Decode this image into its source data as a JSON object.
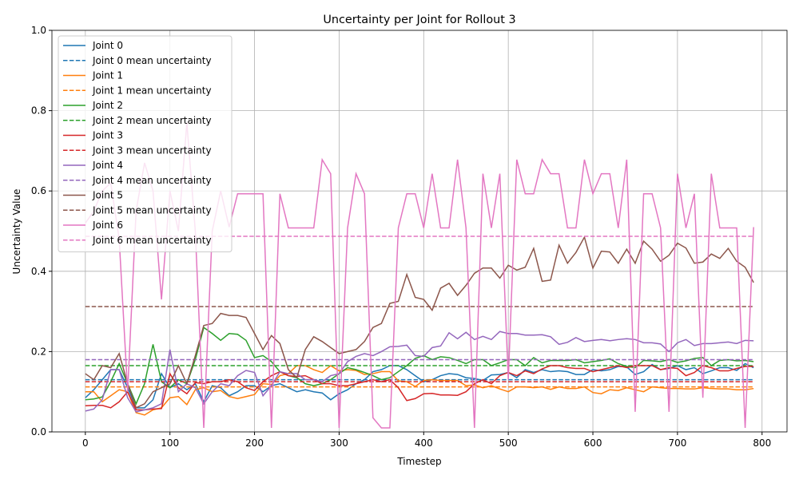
{
  "chart_data": {
    "type": "line",
    "title": "Uncertainty per Joint for Rollout 3",
    "xlabel": "Timestep",
    "ylabel": "Uncertainty Value",
    "x": [
      0,
      10,
      20,
      30,
      40,
      50,
      60,
      70,
      80,
      90,
      100,
      110,
      120,
      130,
      140,
      150,
      160,
      170,
      180,
      190,
      200,
      210,
      220,
      230,
      240,
      250,
      260,
      270,
      280,
      290,
      300,
      310,
      320,
      330,
      340,
      350,
      360,
      370,
      380,
      390,
      400,
      410,
      420,
      430,
      440,
      450,
      460,
      470,
      480,
      490,
      500,
      510,
      520,
      530,
      540,
      550,
      560,
      570,
      580,
      590,
      600,
      610,
      620,
      630,
      640,
      650,
      660,
      670,
      680,
      690,
      700,
      710,
      720,
      730,
      740,
      750,
      760,
      770,
      780,
      790
    ],
    "xlim": [
      -39.5,
      829.5
    ],
    "ylim": [
      0,
      1
    ],
    "xticks": [
      0,
      100,
      200,
      300,
      400,
      500,
      600,
      700,
      800
    ],
    "yticks": [
      {
        "value": 0,
        "label": "0.0"
      },
      0.2,
      0.4,
      0.6,
      0.8,
      {
        "value": 1,
        "label": "1.0"
      }
    ],
    "grid": true,
    "legend": "upper left",
    "series": [
      {
        "name": "Joint 0",
        "color": "#1f77b4",
        "values": [
          0.085,
          0.105,
          0.13,
          0.155,
          0.155,
          0.11,
          0.06,
          0.06,
          0.08,
          0.145,
          0.11,
          0.12,
          0.105,
          0.12,
          0.075,
          0.115,
          0.11,
          0.09,
          0.1,
          0.115,
          0.115,
          0.1,
          0.115,
          0.12,
          0.11,
          0.1,
          0.105,
          0.1,
          0.097,
          0.08,
          0.095,
          0.105,
          0.12,
          0.13,
          0.15,
          0.155,
          0.165,
          0.165,
          0.155,
          0.14,
          0.125,
          0.13,
          0.14,
          0.145,
          0.143,
          0.135,
          0.133,
          0.128,
          0.142,
          0.143,
          0.148,
          0.135,
          0.155,
          0.148,
          0.155,
          0.15,
          0.152,
          0.15,
          0.143,
          0.143,
          0.155,
          0.152,
          0.155,
          0.163,
          0.162,
          0.143,
          0.15,
          0.168,
          0.155,
          0.158,
          0.165,
          0.155,
          0.16,
          0.145,
          0.152,
          0.16,
          0.16,
          0.153,
          0.17,
          0.16
        ]
      },
      {
        "name": "Joint 0 mean uncertainty",
        "color": "#1f77b4",
        "linestyle": "dashed",
        "x": [
          0,
          790
        ],
        "values": [
          0.13,
          0.13
        ]
      },
      {
        "name": "Joint 1",
        "color": "#ff7f0e",
        "values": [
          0.1,
          0.1,
          0.075,
          0.09,
          0.105,
          0.1,
          0.048,
          0.042,
          0.055,
          0.06,
          0.085,
          0.088,
          0.068,
          0.105,
          0.11,
          0.1,
          0.103,
          0.088,
          0.083,
          0.088,
          0.093,
          0.12,
          0.118,
          0.14,
          0.145,
          0.165,
          0.165,
          0.155,
          0.148,
          0.165,
          0.152,
          0.155,
          0.153,
          0.143,
          0.145,
          0.15,
          0.15,
          0.127,
          0.125,
          0.113,
          0.128,
          0.13,
          0.128,
          0.128,
          0.128,
          0.115,
          0.117,
          0.11,
          0.115,
          0.107,
          0.1,
          0.112,
          0.112,
          0.11,
          0.112,
          0.106,
          0.112,
          0.108,
          0.108,
          0.112,
          0.098,
          0.095,
          0.105,
          0.103,
          0.11,
          0.105,
          0.1,
          0.112,
          0.11,
          0.108,
          0.108,
          0.107,
          0.107,
          0.11,
          0.108,
          0.107,
          0.107,
          0.105,
          0.105,
          0.108
        ]
      },
      {
        "name": "Joint 1 mean uncertainty",
        "color": "#ff7f0e",
        "linestyle": "dashed",
        "x": [
          0,
          790
        ],
        "values": [
          0.112,
          0.112
        ]
      },
      {
        "name": "Joint 2",
        "color": "#2ca02c",
        "values": [
          0.08,
          0.082,
          0.087,
          0.125,
          0.17,
          0.12,
          0.07,
          0.12,
          0.218,
          0.125,
          0.11,
          0.13,
          0.12,
          0.18,
          0.26,
          0.245,
          0.228,
          0.245,
          0.243,
          0.228,
          0.185,
          0.19,
          0.175,
          0.15,
          0.14,
          0.135,
          0.12,
          0.115,
          0.12,
          0.13,
          0.145,
          0.16,
          0.155,
          0.148,
          0.14,
          0.13,
          0.135,
          0.15,
          0.165,
          0.183,
          0.19,
          0.18,
          0.187,
          0.185,
          0.178,
          0.17,
          0.18,
          0.18,
          0.165,
          0.172,
          0.18,
          0.18,
          0.165,
          0.185,
          0.172,
          0.178,
          0.178,
          0.178,
          0.18,
          0.172,
          0.175,
          0.178,
          0.182,
          0.17,
          0.163,
          0.16,
          0.178,
          0.177,
          0.175,
          0.18,
          0.173,
          0.177,
          0.183,
          0.185,
          0.165,
          0.178,
          0.18,
          0.177,
          0.178,
          0.175
        ]
      },
      {
        "name": "Joint 2 mean uncertainty",
        "color": "#2ca02c",
        "linestyle": "dashed",
        "x": [
          0,
          790
        ],
        "values": [
          0.165,
          0.165
        ]
      },
      {
        "name": "Joint 3",
        "color": "#d62728",
        "values": [
          0.065,
          0.066,
          0.066,
          0.06,
          0.075,
          0.1,
          0.055,
          0.055,
          0.057,
          0.058,
          0.145,
          0.11,
          0.095,
          0.123,
          0.12,
          0.125,
          0.125,
          0.13,
          0.125,
          0.11,
          0.103,
          0.125,
          0.14,
          0.15,
          0.14,
          0.138,
          0.14,
          0.13,
          0.12,
          0.12,
          0.115,
          0.115,
          0.12,
          0.125,
          0.13,
          0.125,
          0.13,
          0.11,
          0.078,
          0.083,
          0.095,
          0.096,
          0.092,
          0.092,
          0.091,
          0.1,
          0.12,
          0.13,
          0.12,
          0.14,
          0.148,
          0.14,
          0.152,
          0.145,
          0.157,
          0.165,
          0.165,
          0.16,
          0.158,
          0.158,
          0.15,
          0.155,
          0.16,
          0.165,
          0.16,
          0.165,
          0.165,
          0.165,
          0.155,
          0.16,
          0.158,
          0.14,
          0.148,
          0.165,
          0.16,
          0.152,
          0.152,
          0.158,
          0.163,
          0.163
        ]
      },
      {
        "name": "Joint 3 mean uncertainty",
        "color": "#d62728",
        "linestyle": "dashed",
        "x": [
          0,
          790
        ],
        "values": [
          0.125,
          0.125
        ]
      },
      {
        "name": "Joint 4",
        "color": "#9467bd",
        "values": [
          0.052,
          0.057,
          0.08,
          0.155,
          0.155,
          0.085,
          0.05,
          0.055,
          0.06,
          0.07,
          0.205,
          0.1,
          0.12,
          0.11,
          0.07,
          0.1,
          0.12,
          0.115,
          0.14,
          0.153,
          0.148,
          0.09,
          0.115,
          0.15,
          0.145,
          0.145,
          0.13,
          0.13,
          0.125,
          0.14,
          0.145,
          0.175,
          0.188,
          0.195,
          0.19,
          0.2,
          0.212,
          0.213,
          0.216,
          0.19,
          0.188,
          0.21,
          0.214,
          0.247,
          0.232,
          0.248,
          0.23,
          0.238,
          0.23,
          0.25,
          0.245,
          0.245,
          0.241,
          0.241,
          0.242,
          0.237,
          0.218,
          0.223,
          0.235,
          0.225,
          0.228,
          0.23,
          0.227,
          0.23,
          0.232,
          0.23,
          0.222,
          0.222,
          0.219,
          0.2,
          0.222,
          0.23,
          0.215,
          0.22,
          0.22,
          0.222,
          0.224,
          0.22,
          0.228,
          0.227
        ]
      },
      {
        "name": "Joint 4 mean uncertainty",
        "color": "#9467bd",
        "linestyle": "dashed",
        "x": [
          0,
          790
        ],
        "values": [
          0.18,
          0.18
        ]
      },
      {
        "name": "Joint 5",
        "color": "#8c564b",
        "values": [
          0.145,
          0.13,
          0.165,
          0.16,
          0.195,
          0.12,
          0.06,
          0.07,
          0.1,
          0.11,
          0.12,
          0.165,
          0.12,
          0.19,
          0.265,
          0.27,
          0.295,
          0.29,
          0.29,
          0.285,
          0.245,
          0.205,
          0.24,
          0.22,
          0.155,
          0.135,
          0.205,
          0.237,
          0.225,
          0.21,
          0.195,
          0.2,
          0.205,
          0.225,
          0.26,
          0.27,
          0.32,
          0.325,
          0.392,
          0.335,
          0.33,
          0.303,
          0.358,
          0.37,
          0.34,
          0.365,
          0.395,
          0.408,
          0.408,
          0.383,
          0.415,
          0.403,
          0.41,
          0.457,
          0.375,
          0.378,
          0.465,
          0.42,
          0.447,
          0.485,
          0.408,
          0.45,
          0.448,
          0.42,
          0.455,
          0.42,
          0.475,
          0.455,
          0.425,
          0.44,
          0.47,
          0.458,
          0.42,
          0.423,
          0.443,
          0.432,
          0.457,
          0.425,
          0.41,
          0.372
        ]
      },
      {
        "name": "Joint 5 mean uncertainty",
        "color": "#8c564b",
        "linestyle": "dashed",
        "x": [
          0,
          790
        ],
        "values": [
          0.312,
          0.312
        ]
      },
      {
        "name": "Joint 6",
        "color": "#e377c2",
        "values": [
          0.52,
          0.55,
          0.6,
          0.62,
          0.48,
          0.1,
          0.55,
          0.67,
          0.6,
          0.33,
          0.6,
          0.5,
          0.77,
          0.5,
          0.01,
          0.5,
          0.6,
          0.51,
          0.593,
          0.593,
          0.593,
          0.593,
          0.01,
          0.593,
          0.508,
          0.508,
          0.508,
          0.508,
          0.678,
          0.643,
          0.01,
          0.508,
          0.643,
          0.593,
          0.035,
          0.01,
          0.01,
          0.508,
          0.593,
          0.593,
          0.508,
          0.643,
          0.508,
          0.508,
          0.678,
          0.508,
          0.01,
          0.643,
          0.508,
          0.643,
          0.13,
          0.678,
          0.593,
          0.593,
          0.678,
          0.643,
          0.643,
          0.508,
          0.508,
          0.678,
          0.593,
          0.643,
          0.643,
          0.508,
          0.678,
          0.05,
          0.593,
          0.593,
          0.508,
          0.05,
          0.643,
          0.508,
          0.593,
          0.085,
          0.643,
          0.508,
          0.508,
          0.508,
          0.01,
          0.51
        ]
      },
      {
        "name": "Joint 6 mean uncertainty",
        "color": "#e377c2",
        "linestyle": "dashed",
        "x": [
          0,
          790
        ],
        "values": [
          0.487,
          0.487
        ]
      }
    ]
  }
}
